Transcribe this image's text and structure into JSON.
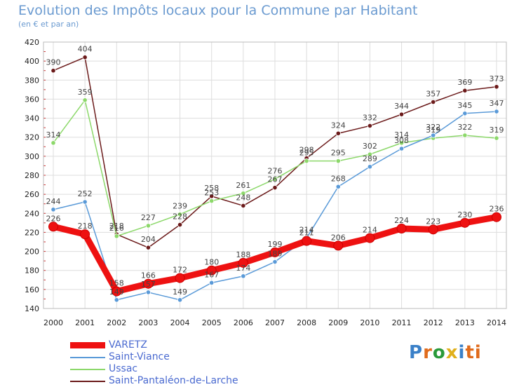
{
  "header": {
    "title": "Evolution des Impôts locaux pour la Commune par Habitant",
    "subtitle": "(en € et par an)"
  },
  "logo": {
    "letters": [
      "P",
      "r",
      "o",
      "x",
      "i",
      "ti"
    ]
  },
  "chart_data": {
    "type": "line",
    "title": "Evolution des Impôts locaux pour la Commune par Habitant",
    "ylabel": "(en € et par an)",
    "xlabel": "",
    "ylim": [
      140,
      420
    ],
    "yticks": [
      140,
      160,
      180,
      200,
      220,
      240,
      260,
      280,
      300,
      320,
      340,
      360,
      380,
      400,
      420
    ],
    "categories": [
      "2000",
      "2001",
      "2002",
      "2003",
      "2004",
      "2005",
      "2006",
      "2007",
      "2008",
      "2009",
      "2010",
      "2011",
      "2012",
      "2013",
      "2014"
    ],
    "grid": true,
    "legend_position": "bottom-left",
    "series": [
      {
        "name": "Saint-Pantaléon-de-Larche",
        "color": "#6b1a1a",
        "values": [
          390,
          404,
          218,
          204,
          228,
          258,
          248,
          267,
          298,
          324,
          332,
          344,
          357,
          369,
          373
        ]
      },
      {
        "name": "Ussac",
        "color": "#8cd86a",
        "values": [
          314,
          359,
          216,
          227,
          239,
          253,
          261,
          276,
          295,
          295,
          302,
          314,
          319,
          322,
          319
        ]
      },
      {
        "name": "Saint-Viance",
        "color": "#5a9ad8",
        "values": [
          244,
          252,
          149,
          157,
          149,
          167,
          174,
          189,
          214,
          268,
          289,
          308,
          322,
          345,
          347
        ]
      },
      {
        "name": "VARETZ",
        "color": "#ee1111",
        "values": [
          226,
          218,
          158,
          166,
          172,
          180,
          188,
          199,
          211,
          206,
          214,
          224,
          223,
          230,
          236
        ]
      }
    ],
    "legend_order": [
      "VARETZ",
      "Saint-Viance",
      "Ussac",
      "Saint-Pantaléon-de-Larche"
    ]
  }
}
